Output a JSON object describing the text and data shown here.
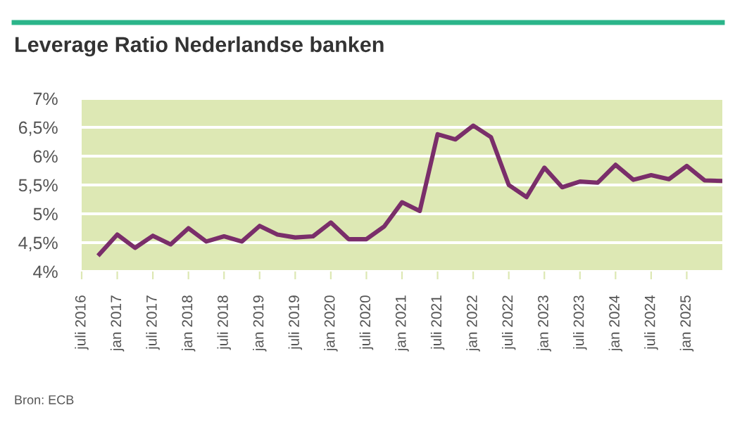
{
  "chart_data": {
    "type": "line",
    "title": "Leverage Ratio Nederlandse banken",
    "categories": [
      "juli 2016",
      null,
      "jan 2017",
      null,
      "juli 2017",
      null,
      "jan 2018",
      null,
      "juli 2018",
      null,
      "jan 2019",
      null,
      "juli 2019",
      null,
      "jan 2020",
      null,
      "juli 2020",
      null,
      "jan 2021",
      null,
      "juli 2021",
      null,
      "jan 2022",
      null,
      "juli 2022",
      null,
      "jan 2023",
      null,
      "juli 2023",
      null,
      "jan 2024",
      null,
      "juli 2024",
      null,
      "jan 2025",
      null,
      null
    ],
    "series": [
      {
        "color": "#7a2e6a",
        "values": [
          null,
          4.3,
          4.64,
          4.41,
          4.62,
          4.47,
          4.75,
          4.52,
          4.61,
          4.52,
          4.79,
          4.64,
          4.59,
          4.61,
          4.85,
          4.56,
          4.56,
          4.78,
          5.2,
          5.05,
          6.38,
          6.29,
          6.53,
          6.33,
          5.5,
          5.29,
          5.8,
          5.46,
          5.56,
          5.54,
          5.85,
          5.59,
          5.67,
          5.6,
          5.83,
          5.58,
          5.57
        ]
      }
    ],
    "ylim": [
      4,
      7
    ],
    "yticks": [
      {
        "value": 4,
        "label": "4%"
      },
      {
        "value": 4.5,
        "label": "4,5%"
      },
      {
        "value": 5,
        "label": "5%"
      },
      {
        "value": 5.5,
        "label": "5,5%"
      },
      {
        "value": 6,
        "label": "6%"
      },
      {
        "value": 6.5,
        "label": "6,5%"
      },
      {
        "value": 7,
        "label": "7%"
      }
    ],
    "grid": "y",
    "legend": false,
    "marker": "none",
    "line_style": "solid",
    "annotations": [
      "Bron: ECB"
    ]
  }
}
